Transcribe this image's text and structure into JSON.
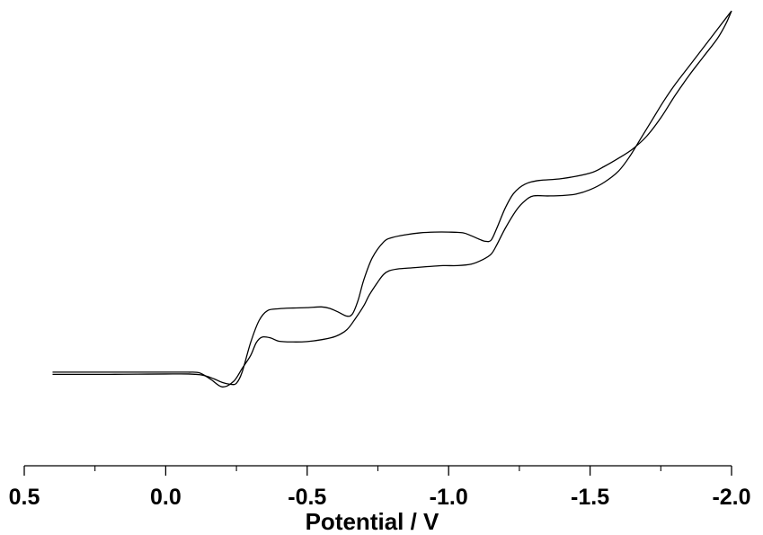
{
  "chart_data": {
    "type": "line",
    "title": "",
    "xlabel": "Potential / V",
    "ylabel": "",
    "xlim": [
      0.5,
      -2.0
    ],
    "ylim": [
      0,
      100
    ],
    "x_reversed": true,
    "y_axis_shown": false,
    "grid": false,
    "legend": "none",
    "line_color": "#000000",
    "x_ticks_major": [
      0.5,
      0.0,
      -0.5,
      -1.0,
      -1.5,
      -2.0
    ],
    "x_tick_labels": [
      "0.5",
      "0.0",
      "-0.5",
      "-1.0",
      "-1.5",
      "-2.0"
    ],
    "x_ticks_minor": [
      0.25,
      -0.25,
      -0.75,
      -1.25,
      -1.75
    ],
    "series": [
      {
        "segment": "forward",
        "x": [
          0.4,
          0.3,
          0.2,
          0.1,
          0.0,
          -0.08,
          -0.13,
          -0.17,
          -0.2,
          -0.23,
          -0.25,
          -0.27,
          -0.3,
          -0.33,
          -0.36,
          -0.4,
          -0.45,
          -0.5,
          -0.55,
          -0.58,
          -0.61,
          -0.64,
          -0.66,
          -0.68,
          -0.7,
          -0.73,
          -0.77,
          -0.8,
          -0.85,
          -0.9,
          -0.95,
          -1.0,
          -1.05,
          -1.08,
          -1.11,
          -1.13,
          -1.15,
          -1.17,
          -1.2,
          -1.23,
          -1.27,
          -1.32,
          -1.4,
          -1.5,
          -1.55,
          -1.6,
          -1.65,
          -1.7,
          -1.75,
          -1.8,
          -1.85,
          -1.9,
          -1.95,
          -1.98,
          -2.0
        ],
        "y": [
          0.4,
          0.4,
          0.4,
          0.45,
          0.5,
          0.5,
          0.2,
          -0.8,
          -1.8,
          -2.3,
          -2.0,
          1.0,
          9.0,
          15.0,
          17.7,
          18.2,
          18.4,
          18.5,
          18.7,
          18.3,
          17.3,
          16.2,
          16.8,
          20.5,
          26.0,
          32.0,
          36.3,
          37.5,
          38.3,
          38.8,
          39.0,
          39.0,
          38.8,
          38.0,
          37.0,
          36.5,
          36.8,
          40.0,
          45.5,
          49.5,
          52.0,
          53.0,
          53.5,
          55.0,
          56.8,
          59.0,
          61.5,
          65.0,
          70.0,
          76.0,
          81.5,
          86.5,
          91.5,
          95.5,
          99.0
        ]
      },
      {
        "segment": "reverse",
        "x": [
          -2.0,
          -1.98,
          -1.95,
          -1.9,
          -1.85,
          -1.8,
          -1.76,
          -1.72,
          -1.68,
          -1.64,
          -1.6,
          -1.55,
          -1.5,
          -1.45,
          -1.4,
          -1.35,
          -1.3,
          -1.27,
          -1.24,
          -1.2,
          -1.17,
          -1.15,
          -1.12,
          -1.08,
          -1.03,
          -0.98,
          -0.92,
          -0.87,
          -0.82,
          -0.79,
          -0.77,
          -0.75,
          -0.72,
          -0.7,
          -0.67,
          -0.64,
          -0.6,
          -0.55,
          -0.5,
          -0.45,
          -0.4,
          -0.37,
          -0.34,
          -0.32,
          -0.3,
          -0.27,
          -0.24,
          -0.2,
          -0.16,
          -0.12,
          -0.08,
          -0.04,
          0.0,
          0.1,
          0.2,
          0.3,
          0.4
        ],
        "y": [
          99.0,
          97.0,
          94.0,
          89.0,
          84.0,
          79.0,
          74.5,
          69.5,
          64.5,
          59.5,
          55.5,
          52.5,
          50.5,
          49.3,
          48.9,
          48.8,
          48.8,
          47.5,
          45.0,
          40.0,
          35.5,
          33.0,
          31.5,
          30.3,
          29.9,
          29.9,
          29.6,
          29.3,
          29.0,
          28.5,
          27.5,
          25.5,
          22.0,
          19.0,
          15.5,
          12.5,
          10.7,
          9.8,
          9.3,
          9.2,
          9.4,
          10.3,
          10.5,
          9.0,
          5.5,
          2.0,
          -1.5,
          -3.0,
          -1.0,
          0.8,
          1.0,
          1.0,
          1.0,
          1.0,
          1.0,
          1.0,
          1.0
        ]
      }
    ]
  }
}
